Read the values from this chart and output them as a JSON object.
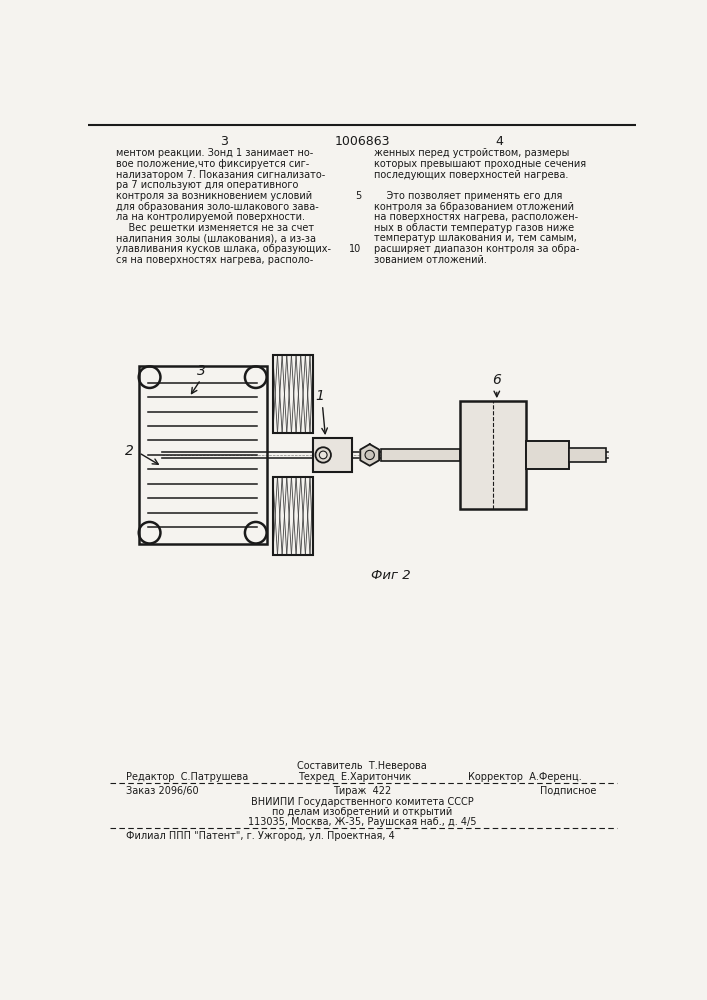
{
  "page_bg": "#f5f3ef",
  "text_color": "#1a1a1a",
  "page_number_left": "3",
  "page_number_center": "1006863",
  "page_number_right": "4",
  "col_left_text": [
    "ментом реакции. Зонд 1 занимает но-",
    "вое положение,что фиксируется сиг-",
    "нализатором 7. Показания сигнализато-",
    "ра 7 используют для оперативного",
    "контроля за возникновением условий",
    "для образования золо-шлакового зава-",
    "ла на контролируемой поверхности.",
    "    Вес решетки изменяется не за счет",
    "налипания золы (шлакования), а из-за",
    "улавливания кусков шлака, образующих-",
    "ся на поверхностях нагрева, располо-"
  ],
  "col_right_text": [
    "женных перед устройством, размеры",
    "которых превышают проходные сечения",
    "последующих поверхностей нагрева.",
    "",
    "    Это позволяет применять его для",
    "контроля за 6бразованием отложений",
    "на поверхностях нагрева, расположен-",
    "ных в области температур газов ниже",
    "температур шлакования и, тем самым,",
    "расширяет диапазон контроля за обра-",
    "зованием отложений."
  ],
  "fig_caption": "Фиг 2",
  "label_2": "2",
  "label_3": "3",
  "label_1": "1",
  "label_6": "6",
  "footer_sestavitel": "Составитель  Т.Неверова",
  "footer_redaktor": "Редактор  С.Патрушева",
  "footer_tehred": "Техред  Е.Харитончик",
  "footer_korrektor": "Корректор  А.Ференц.",
  "footer_zakaz": "Заказ 2096/60",
  "footer_tirazh": "Тираж  422",
  "footer_podpisnoe": "Подписное",
  "footer_vniiipi": "ВНИИПИ Государственного комитета СССР",
  "footer_po_delam": "по делам изобретений и открытий",
  "footer_address": "113035, Москва, Ж-35, Раушская наб., д. 4/5",
  "footer_filial": "Филиал ППП \"Патент\", г. Ужгород, ул. Проектная, 4"
}
